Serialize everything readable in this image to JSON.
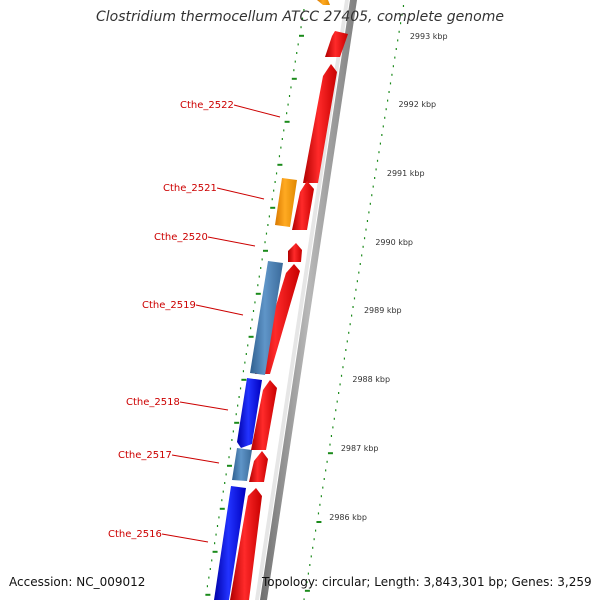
{
  "title": "Clostridium thermocellum ATCC 27405, complete genome",
  "footer": {
    "accession": "Accession: NC_009012",
    "topology": "Topology: circular; Length: 3,843,301 bp; Genes: 3,259"
  },
  "colors": {
    "forward_gene": "#ee1111",
    "reverse_gene_dark": "#1a1adf",
    "reverse_gene_light": "#4a7fb5",
    "other_gene": "#ff9900",
    "tick": "#1a8a1a",
    "label": "#cc0000",
    "backbone": "#999999"
  },
  "kbp_ticks": [
    "2993 kbp",
    "2992 kbp",
    "2991 kbp",
    "2990 kbp",
    "2989 kbp",
    "2988 kbp",
    "2987 kbp",
    "2986 kbp"
  ],
  "gene_labels": [
    "Cthe_2522",
    "Cthe_2521",
    "Cthe_2520",
    "Cthe_2519",
    "Cthe_2518",
    "Cthe_2517",
    "Cthe_2516"
  ]
}
